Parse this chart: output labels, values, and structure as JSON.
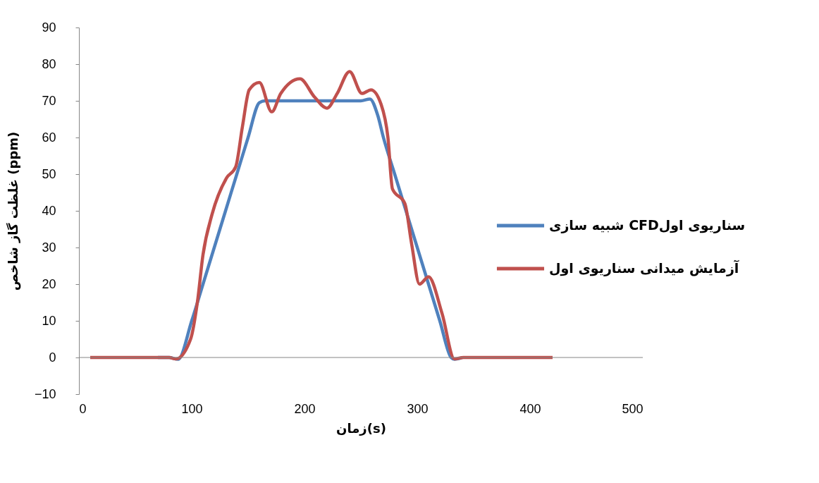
{
  "chart_data": {
    "type": "line",
    "xlabel": "زمان(s)",
    "ylabel": "غلظت گاز شاخص (ppm)",
    "xlim": [
      0,
      500
    ],
    "xticks": [
      0,
      100,
      200,
      300,
      400,
      500
    ],
    "ylim": [
      -10,
      90
    ],
    "yticks": [
      -10,
      0,
      10,
      20,
      30,
      40,
      50,
      60,
      70,
      80,
      90
    ],
    "grid": false,
    "legend": "right",
    "ref_lines": [
      {
        "axis": "y",
        "value": 0,
        "color": "#868686"
      }
    ],
    "marker": "none",
    "line_style": "solid",
    "series": [
      {
        "name": "شبیه سازی  CFDسناریوی اول",
        "color": "#4f81bd",
        "x": [
          70,
          80,
          88,
          100,
          110,
          120,
          130,
          140,
          150,
          160,
          165,
          180,
          200,
          220,
          240,
          250,
          258,
          265,
          270,
          280,
          290,
          300,
          310,
          320,
          330,
          333,
          340
        ],
        "values": [
          0,
          0,
          -0.5,
          10,
          20,
          30,
          40,
          50,
          60,
          69.5,
          70,
          70,
          70,
          70,
          70,
          70,
          70.5,
          66,
          60,
          50,
          40,
          30,
          20,
          10,
          0,
          -0.5,
          0
        ]
      },
      {
        "name": "آزمایش میدانی سناریوی اول",
        "color": "#c0504d",
        "x": [
          10,
          20,
          30,
          40,
          50,
          60,
          70,
          80,
          86,
          99,
          105,
          110,
          118,
          131,
          139,
          145,
          151,
          160,
          171,
          179,
          196,
          209,
          220,
          229,
          240,
          251,
          259,
          268,
          274,
          278,
          289,
          295,
          302,
          310,
          322,
          333,
          341,
          360,
          380,
          400,
          420
        ],
        "values": [
          0,
          0,
          0,
          0,
          0,
          0,
          0,
          0,
          -0.4,
          5,
          15,
          28,
          39,
          49,
          52,
          63,
          73,
          75,
          67,
          72,
          76,
          71,
          68,
          72,
          78,
          72,
          73,
          69,
          60,
          46,
          42,
          31,
          20,
          22,
          12,
          -0.4,
          0,
          0,
          0,
          0,
          0
        ]
      }
    ]
  }
}
